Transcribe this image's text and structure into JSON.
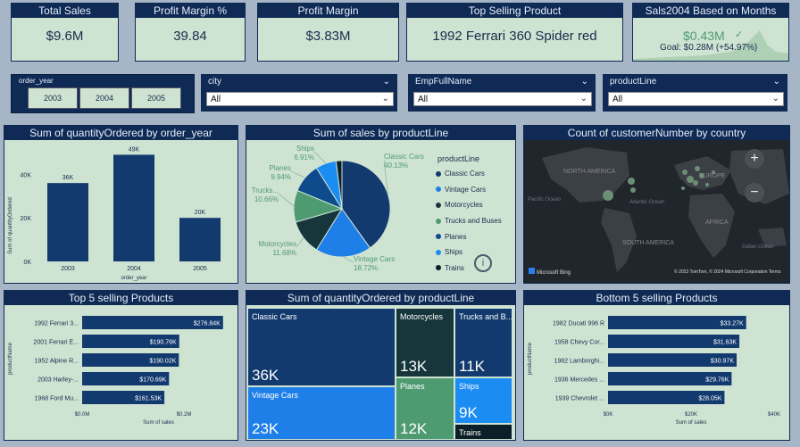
{
  "kpis": [
    {
      "title": "Total Sales",
      "value": "$9.6M"
    },
    {
      "title": "Profit Margin %",
      "value": "39.84"
    },
    {
      "title": "Profit Margin",
      "value": "$3.83M"
    },
    {
      "title": "Top Selling Product",
      "value": "1992 Ferrari 360 Spider red"
    }
  ],
  "sales2004": {
    "title": "Sals2004 Based on Months",
    "value": "$0.43M",
    "goal": "Goal: $0.28M (+54.97%)"
  },
  "order_year_slicer": {
    "label": "order_year",
    "years": [
      "2003",
      "2004",
      "2005"
    ]
  },
  "filters": [
    {
      "label": "city",
      "value": "All"
    },
    {
      "label": "EmpFullName",
      "value": "All"
    },
    {
      "label": "productLine",
      "value": "All"
    }
  ],
  "qty_by_year": {
    "title": "Sum of quantityOrdered by order_year",
    "xlabel": "order_year",
    "ylabel": "Sum of quantityOrdered",
    "chart_data": {
      "type": "bar",
      "categories": [
        "2003",
        "2004",
        "2005"
      ],
      "values": [
        36,
        49,
        20
      ],
      "data_labels": [
        "36K",
        "49K",
        "20K"
      ],
      "yticks": [
        "0K",
        "20K",
        "40K"
      ],
      "ylim": [
        0,
        50
      ]
    }
  },
  "sales_by_productline": {
    "title": "Sum of sales by productLine",
    "legend_title": "productLine",
    "chart_data": {
      "type": "pie",
      "labels": [
        "Classic Cars",
        "Vintage Cars",
        "Motorcycles",
        "Trucks and Buses",
        "Planes",
        "Ships",
        "Trains"
      ],
      "values": [
        40.13,
        18.72,
        11.68,
        10.66,
        9.94,
        6.91,
        1.96
      ],
      "colors": [
        "#123a6e",
        "#1f7fe8",
        "#16363b",
        "#4e9b72",
        "#0e4b8c",
        "#1a8cf2",
        "#0c1f28"
      ]
    },
    "slice_labels": [
      {
        "name": "Classic Cars",
        "pct": "40.13%"
      },
      {
        "name": "Vintage Cars",
        "pct": "18.72%"
      },
      {
        "name": "Motorcycles",
        "pct": "11.68%"
      },
      {
        "name": "Trucks...",
        "pct": "10.66%"
      },
      {
        "name": "Planes",
        "pct": "9.94%"
      },
      {
        "name": "Ships",
        "pct": "6.91%"
      }
    ]
  },
  "map": {
    "title": "Count of customerNumber by country",
    "labels": [
      "NORTH AMERICA",
      "EUROPE",
      "AFRICA",
      "SOUTH AMERICA",
      "Pacific Ocean",
      "Atlantic Ocean",
      "Indian Ocean"
    ],
    "attribution": "Microsoft Bing",
    "copyright": "© 2023 TomTom, © 2024 Microsoft Corporation Terms"
  },
  "top5": {
    "title": "Top 5 selling Products",
    "xlabel": "Sum of sales",
    "ylabel": "productName",
    "chart_data": {
      "type": "bar",
      "orientation": "horizontal",
      "categories": [
        "1992 Ferrari 3...",
        "2001 Ferrari E...",
        "1952 Alpine R...",
        "2003 Harley-...",
        "1968 Ford Mu..."
      ],
      "values": [
        276.84,
        190.76,
        190.02,
        170.69,
        161.53
      ],
      "data_labels": [
        "$276.84K",
        "$190.76K",
        "$190.02K",
        "$170.69K",
        "$161.53K"
      ],
      "xticks": [
        "$0.0M",
        "$0.2M"
      ],
      "xlim": [
        0,
        300
      ]
    }
  },
  "treemap": {
    "title": "Sum of quantityOrdered by productLine",
    "chart_data": {
      "type": "treemap",
      "labels": [
        "Classic Cars",
        "Vintage Cars",
        "Motorcycles",
        "Planes",
        "Trucks and B...",
        "Ships",
        "Trains"
      ],
      "values": [
        "36K",
        "23K",
        "13K",
        "12K",
        "11K",
        "9K",
        ""
      ]
    }
  },
  "bottom5": {
    "title": "Bottom 5 selling Products",
    "xlabel": "Sum of sales",
    "ylabel": "productName",
    "chart_data": {
      "type": "bar",
      "orientation": "horizontal",
      "categories": [
        "1982 Ducati 996 R",
        "1958 Chevy Cor...",
        "1982 Lamborghi...",
        "1936 Mercedes ...",
        "1939 Chevrolet ..."
      ],
      "values": [
        33.27,
        31.63,
        30.97,
        29.76,
        28.05
      ],
      "data_labels": [
        "$33.27K",
        "$31.63K",
        "$30.97K",
        "$29.76K",
        "$28.05K"
      ],
      "xticks": [
        "$0K",
        "$20K",
        "$40K"
      ],
      "xlim": [
        0,
        40
      ]
    }
  }
}
